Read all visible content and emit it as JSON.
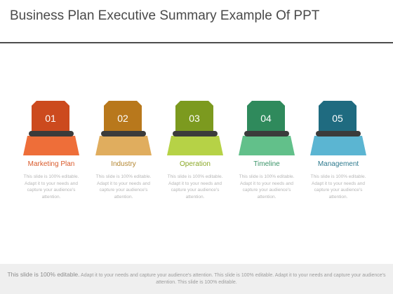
{
  "title": "Business Plan Executive Summary Example Of PPT",
  "items": [
    {
      "number": "01",
      "label": "Marketing Plan",
      "desc": "This slide is 100% editable. Adapt it to your needs and capture your audience's attention.",
      "tab_color": "#cc4a1e",
      "base_color": "#ee6e39",
      "label_color": "#d95a2b"
    },
    {
      "number": "02",
      "label": "Industry",
      "desc": "This slide is 100% editable. Adapt it to your needs and capture your audience's attention.",
      "tab_color": "#b8781c",
      "base_color": "#e0ad5e",
      "label_color": "#b3852f"
    },
    {
      "number": "03",
      "label": "Operation",
      "desc": "This slide is 100% editable. Adapt it to your needs and capture your audience's attention.",
      "tab_color": "#7c9a1f",
      "base_color": "#b6d246",
      "label_color": "#8aa825"
    },
    {
      "number": "04",
      "label": "Timeline",
      "desc": "This slide is 100% editable. Adapt it to your needs and capture your audience's attention.",
      "tab_color": "#2f8a5c",
      "base_color": "#62c08a",
      "label_color": "#3a9468"
    },
    {
      "number": "05",
      "label": "Management",
      "desc": "This slide is 100% editable. Adapt it to your needs and capture your audience's attention.",
      "tab_color": "#1f6b80",
      "base_color": "#5bb5d2",
      "label_color": "#2e7a8e"
    }
  ],
  "footer": {
    "lead": "This slide is 100% editable.",
    "text": "Adapt it to your needs and capture your audience's attention. This slide is 100% editable. Adapt it to your needs and capture your audience's attention. This slide is 100% editable."
  }
}
